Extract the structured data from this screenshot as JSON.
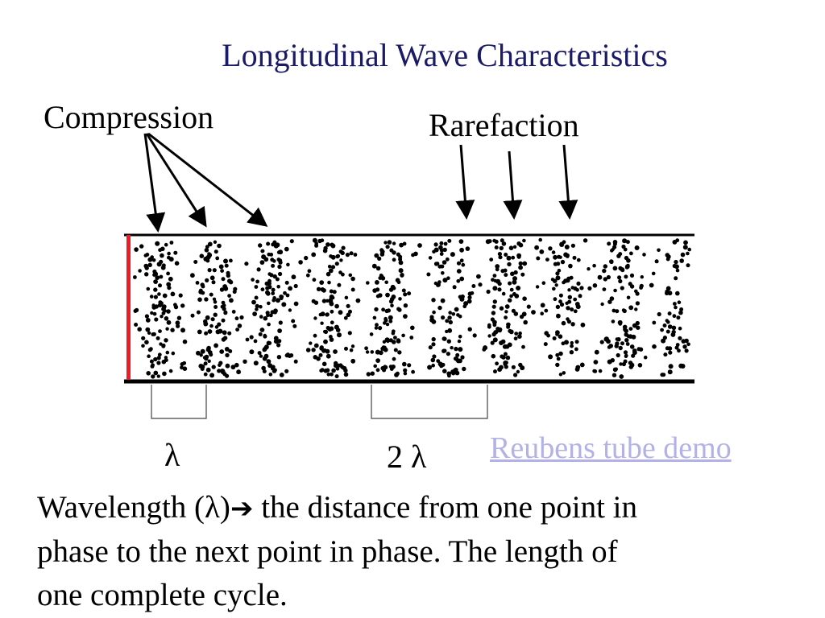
{
  "title": "Longitudinal Wave Characteristics",
  "labels": {
    "compression": "Compression",
    "rarefaction": "Rarefaction",
    "lambda": "λ",
    "two_lambda": "2 λ"
  },
  "link": {
    "text": "Reubens tube demo"
  },
  "definition": {
    "prefix": "Wavelength (λ)",
    "arrow": "➔",
    "line1_rest": " the distance from one point in",
    "line2": "phase to the next point in phase.  The length of",
    "line3": "one complete cycle."
  },
  "colors": {
    "title": "#1a1a66",
    "link": "#b2b2e6",
    "source_bar": "#ee1c24",
    "dots": "#000000"
  }
}
